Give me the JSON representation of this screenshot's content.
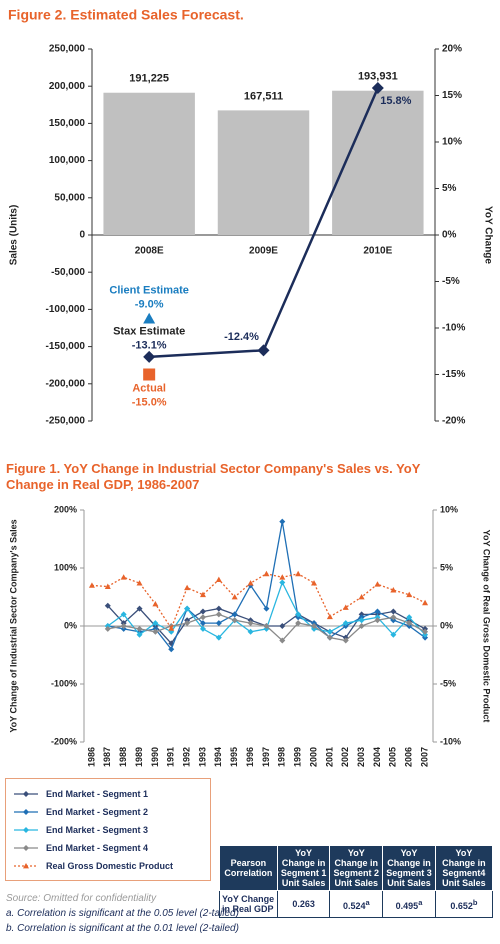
{
  "chart_data": [
    {
      "type": "bar",
      "title": "Figure 2. Estimated Sales Forecast.",
      "y_label": "Sales (Units)",
      "y2_label": "YoY Change",
      "categories": [
        "2008E",
        "2009E",
        "2010E"
      ],
      "series": [
        {
          "type": "bar",
          "color": "#c0c0c0",
          "values": [
            191225,
            167511,
            193931
          ],
          "value_labels": [
            "191,225",
            "167,511",
            "193,931"
          ]
        },
        {
          "type": "line",
          "name": "Stax Estimate",
          "axis": "y2",
          "color": "#1c2d5a",
          "marker": "diamond",
          "values": [
            -13.1,
            -12.4,
            15.8
          ],
          "value_labels": [
            "-13.1%",
            "-12.4%",
            "15.8%"
          ]
        }
      ],
      "annotations": [
        {
          "text": "Client Estimate",
          "x": "2008E",
          "value": -9.0,
          "value_label": "-9.0%",
          "marker": "triangle",
          "color": "#1a7dc0"
        },
        {
          "text": "Actual",
          "x": "2008E",
          "value": -15.0,
          "value_label": "-15.0%",
          "marker": "square",
          "color": "#e8632b"
        }
      ],
      "ylim": [
        -250000,
        250000
      ],
      "yticks": [
        {
          "value": 250000,
          "label": "250,000"
        },
        {
          "value": 200000,
          "label": "200,000"
        },
        {
          "value": 150000,
          "label": "150,000"
        },
        {
          "value": 100000,
          "label": "100,000"
        },
        {
          "value": 50000,
          "label": "50,000"
        },
        0,
        {
          "value": -50000,
          "label": "-50,000"
        },
        {
          "value": -100000,
          "label": "-100,000"
        },
        {
          "value": -150000,
          "label": "-150,000"
        },
        {
          "value": -200000,
          "label": "-200,000"
        },
        {
          "value": -250000,
          "label": "-250,000"
        }
      ],
      "y2lim": [
        -20,
        20
      ],
      "y2ticks": [
        {
          "value": 20,
          "label": "20%"
        },
        {
          "value": 15,
          "label": "15%"
        },
        {
          "value": 10,
          "label": "10%"
        },
        {
          "value": 5,
          "label": "5%"
        },
        {
          "value": 0,
          "label": "0%"
        },
        {
          "value": -5,
          "label": "-5%"
        },
        {
          "value": -10,
          "label": "-10%"
        },
        {
          "value": -15,
          "label": "-15%"
        },
        {
          "value": -20,
          "label": "-20%"
        }
      ]
    },
    {
      "type": "line",
      "title": "Figure 1. YoY Change in Industrial Sector Company's Sales vs. YoY Change in Real GDP, 1986-2007",
      "y_label": "YoY Change of Industrial Sector Company's Sales",
      "y2_label": "YoY Change of Real Gross Domestic Product",
      "categories": [
        "1986",
        "1987",
        "1988",
        "1989",
        "1990",
        "1991",
        "1992",
        "1993",
        "1994",
        "1995",
        "1996",
        "1997",
        "1998",
        "1999",
        "2000",
        "2001",
        "2002",
        "2003",
        "2004",
        "2005",
        "2006",
        "2007"
      ],
      "series": [
        {
          "name": "End Market - Segment 1",
          "color": "#3a4f7a",
          "marker": "diamond",
          "values": [
            null,
            35,
            5,
            30,
            0,
            -30,
            10,
            25,
            30,
            20,
            10,
            0,
            0,
            20,
            5,
            -10,
            -20,
            20,
            20,
            25,
            10,
            -5
          ]
        },
        {
          "name": "End Market - Segment 2",
          "color": "#1f6fb5",
          "marker": "diamond",
          "values": [
            null,
            0,
            -5,
            -10,
            -5,
            -40,
            30,
            5,
            5,
            20,
            70,
            30,
            180,
            15,
            5,
            -20,
            0,
            15,
            25,
            10,
            0,
            -20
          ]
        },
        {
          "name": "End Market - Segment 3",
          "color": "#29b6e0",
          "marker": "diamond",
          "values": [
            null,
            0,
            20,
            -15,
            5,
            -10,
            30,
            -5,
            -20,
            10,
            -10,
            -5,
            75,
            20,
            -5,
            -10,
            5,
            10,
            15,
            -15,
            15,
            -15
          ]
        },
        {
          "name": "End Market - Segment 4",
          "color": "#8a8a8a",
          "marker": "diamond",
          "values": [
            null,
            -5,
            0,
            -5,
            -10,
            0,
            5,
            15,
            20,
            10,
            5,
            0,
            -25,
            5,
            0,
            -20,
            -25,
            0,
            10,
            15,
            5,
            -10
          ]
        },
        {
          "name": "Real Gross Domestic Product",
          "axis": "y2",
          "color": "#e8632b",
          "marker": "triangle",
          "dash": true,
          "values": [
            3.5,
            3.4,
            4.2,
            3.7,
            1.9,
            -0.2,
            3.3,
            2.7,
            4.0,
            2.5,
            3.7,
            4.5,
            4.2,
            4.5,
            3.7,
            0.8,
            1.6,
            2.5,
            3.6,
            3.1,
            2.7,
            2.0
          ]
        }
      ],
      "ylim": [
        -200,
        200
      ],
      "yticks": [
        {
          "value": 200,
          "label": "200%"
        },
        {
          "value": 100,
          "label": "100%"
        },
        {
          "value": 0,
          "label": "0%"
        },
        {
          "value": -100,
          "label": "-100%"
        },
        {
          "value": -200,
          "label": "-200%"
        }
      ],
      "y2lim": [
        -10,
        10
      ],
      "y2ticks": [
        {
          "value": 10,
          "label": "10%"
        },
        {
          "value": 5,
          "label": "5%"
        },
        {
          "value": 0,
          "label": "0%"
        },
        {
          "value": -5,
          "label": "-5%"
        },
        {
          "value": -10,
          "label": "-10%"
        }
      ]
    }
  ],
  "table": {
    "header": [
      "Pearson Correlation",
      "YoY Change in Segment 1 Unit Sales",
      "YoY Change in Segment 2 Unit Sales",
      "YoY Change in Segment 3 Unit Sales",
      "YoY Change in Segment4 Unit Sales"
    ],
    "rows": [
      [
        {
          "text": "YoY Change in Real GDP"
        },
        {
          "text": "0.263"
        },
        {
          "text": "0.524",
          "sup": "a"
        },
        {
          "text": "0.495",
          "sup": "a"
        },
        {
          "text": "0.652",
          "sup": "b"
        }
      ]
    ]
  },
  "footnotes": {
    "source": "Source: Omitted for confidentiality",
    "notes": [
      "a. Correlation is significant at the 0.05 level (2-tailed)",
      "b. Correlation is significant at the 0.01 level (2-tailed)"
    ]
  }
}
